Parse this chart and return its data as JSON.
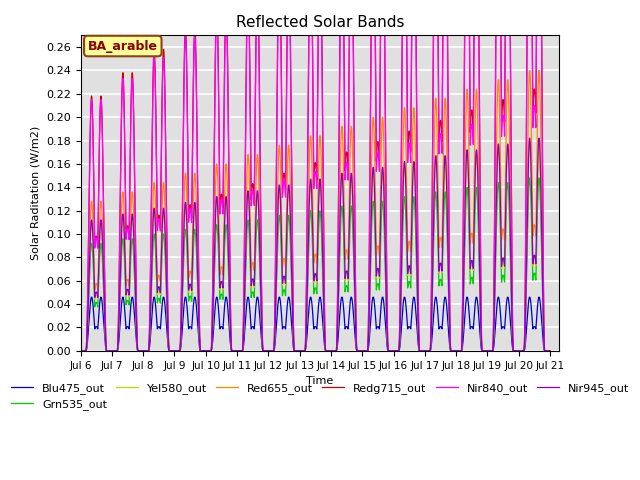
{
  "title": "Reflected Solar Bands",
  "xlabel": "Time",
  "ylabel": "Solar Raditation (W/m2)",
  "ylim": [
    0.0,
    0.27
  ],
  "yticks": [
    0.0,
    0.02,
    0.04,
    0.06,
    0.08,
    0.1,
    0.12,
    0.14,
    0.16,
    0.18,
    0.2,
    0.22,
    0.24,
    0.26
  ],
  "annotation": "BA_arable",
  "annotation_bg": "#FFFF99",
  "annotation_border": "#8B4513",
  "background_color": "#E0E0E0",
  "series": [
    {
      "name": "Blu475_out",
      "color": "#0000CC",
      "base_peak": 0.046,
      "peak_growth": 0.0
    },
    {
      "name": "Grn535_out",
      "color": "#00CC00",
      "base_peak": 0.092,
      "peak_growth": 0.004
    },
    {
      "name": "Yel580_out",
      "color": "#CCCC00",
      "base_peak": 0.108,
      "peak_growth": 0.005
    },
    {
      "name": "Red655_out",
      "color": "#FF8800",
      "base_peak": 0.128,
      "peak_growth": 0.008
    },
    {
      "name": "Redg715_out",
      "color": "#CC0000",
      "base_peak": 0.218,
      "peak_growth": 0.02
    },
    {
      "name": "Nir840_out",
      "color": "#FF00FF",
      "base_peak": 0.215,
      "peak_growth": 0.018
    },
    {
      "name": "Nir945_out",
      "color": "#8800CC",
      "base_peak": 0.112,
      "peak_growth": 0.005
    }
  ],
  "start_day": 6,
  "end_day": 21,
  "points_per_day": 500,
  "figsize": [
    6.4,
    4.8
  ],
  "dpi": 100
}
